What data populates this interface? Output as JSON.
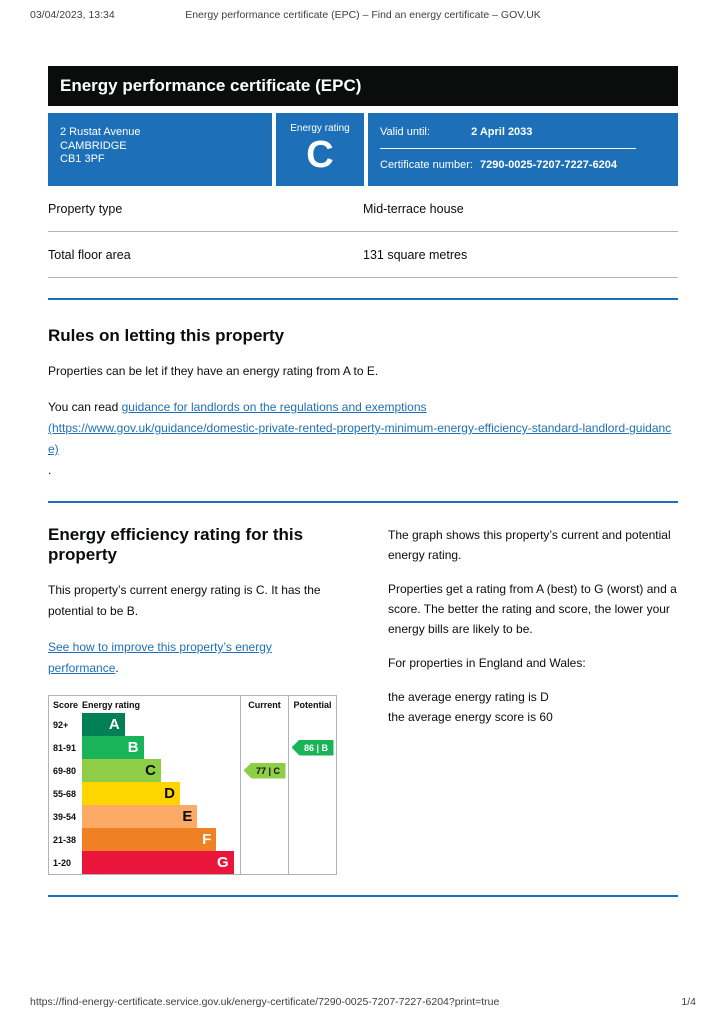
{
  "print_header": {
    "datetime": "03/04/2023, 13:34",
    "title": "Energy performance certificate (EPC) – Find an energy certificate – GOV.UK"
  },
  "banner": {
    "title": "Energy performance certificate (EPC)"
  },
  "summary_panel": {
    "address": {
      "line1": "2 Rustat Avenue",
      "line2": "CAMBRIDGE",
      "line3": "CB1 3PF"
    },
    "rating": {
      "label": "Energy rating",
      "value": "C"
    },
    "validity": {
      "valid_until_label": "Valid until:",
      "valid_until_value": "2 April 2033",
      "certificate_number_label": "Certificate number:",
      "certificate_number_value": "7290-0025-7207-7227-6204"
    }
  },
  "property_details": {
    "rows": [
      {
        "label": "Property type",
        "value": "Mid-terrace house"
      },
      {
        "label": "Total floor area",
        "value": "131 square metres"
      }
    ]
  },
  "rules_section": {
    "heading": "Rules on letting this property",
    "paragraph1": "Properties can be let if they have an energy rating from A to E.",
    "paragraph2_prefix": "You can read ",
    "link_text": "guidance for landlords on the regulations and exemptions",
    "link_url_text": "(https://www.gov.uk/guidance/domestic-private-rented-property-minimum-energy-efficiency-standard-landlord-guidance)",
    "paragraph2_suffix": "."
  },
  "rating_section": {
    "heading": "Energy efficiency rating for this property",
    "paragraph1": "This property’s current energy rating is C. It has the potential to be B.",
    "link_text": "See how to improve this property’s energy performance",
    "link_suffix": ".",
    "right_paragraph1": "The graph shows this property’s current and potential energy rating.",
    "right_paragraph2": "Properties get a rating from A (best) to G (worst) and a score. The better the rating and score, the lower your energy bills are likely to be.",
    "right_paragraph3": "For properties in England and Wales:",
    "right_paragraph4_line1": "the average energy rating is D",
    "right_paragraph4_line2": "the average energy score is 60"
  },
  "chart_data": {
    "type": "bar",
    "title": "Energy efficiency rating chart",
    "headers": {
      "score": "Score",
      "rating": "Energy rating",
      "current": "Current",
      "potential": "Potential"
    },
    "bands": [
      {
        "score": "92+",
        "letter": "A",
        "color": "#008054",
        "letter_color": "#ffffff",
        "width_pct": 27
      },
      {
        "score": "81-91",
        "letter": "B",
        "color": "#19b459",
        "letter_color": "#ffffff",
        "width_pct": 39
      },
      {
        "score": "69-80",
        "letter": "C",
        "color": "#8dce46",
        "letter_color": "#0b0c0c",
        "width_pct": 50
      },
      {
        "score": "55-68",
        "letter": "D",
        "color": "#ffd500",
        "letter_color": "#0b0c0c",
        "width_pct": 62
      },
      {
        "score": "39-54",
        "letter": "E",
        "color": "#fcaa65",
        "letter_color": "#0b0c0c",
        "width_pct": 73
      },
      {
        "score": "21-38",
        "letter": "F",
        "color": "#ef8023",
        "letter_color": "#ffffff",
        "width_pct": 85
      },
      {
        "score": "1-20",
        "letter": "G",
        "color": "#e9153b",
        "letter_color": "#ffffff",
        "width_pct": 96
      }
    ],
    "current": {
      "label": "77 | C",
      "score": 77,
      "rating": "C",
      "row_index": 2,
      "color": "#8dce46",
      "text_color": "#0b0c0c"
    },
    "potential": {
      "label": "86 | B",
      "score": 86,
      "rating": "B",
      "row_index": 1,
      "color": "#19b459",
      "text_color": "#ffffff"
    }
  },
  "colors": {
    "govuk_blue": "#1d70b8",
    "govuk_black": "#0b0c0c",
    "border_grey": "#b1b4b6"
  },
  "print_footer": {
    "url": "https://find-energy-certificate.service.gov.uk/energy-certificate/7290-0025-7207-7227-6204?print=true",
    "page": "1/4"
  }
}
